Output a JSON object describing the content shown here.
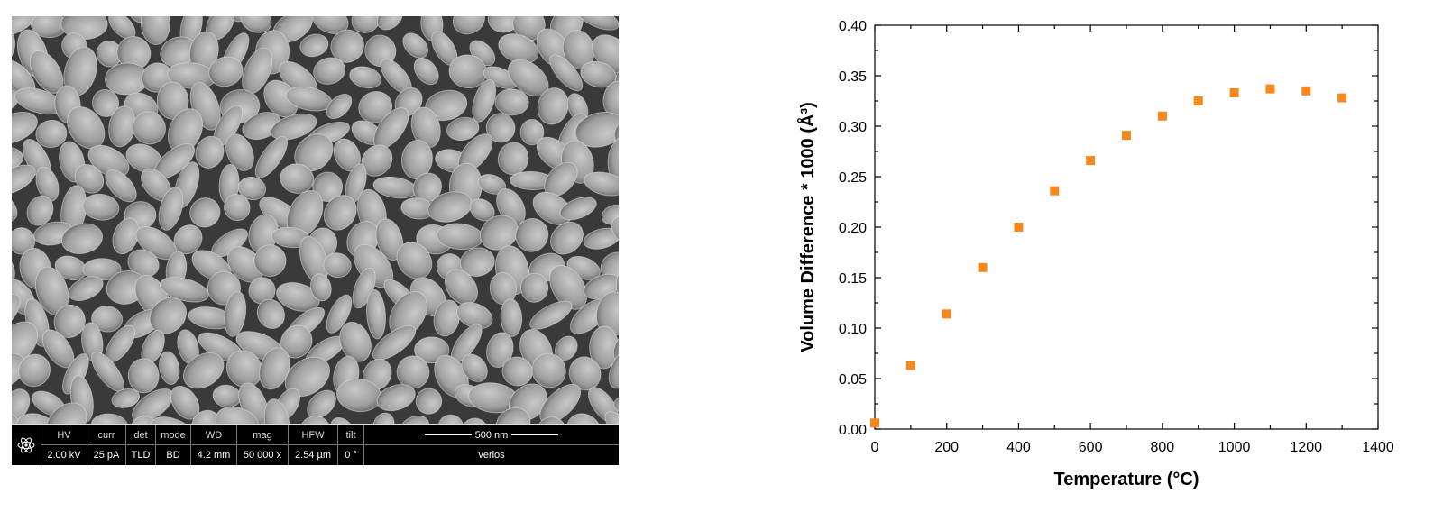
{
  "sem": {
    "databar": {
      "columns": [
        {
          "key": "hv",
          "label": "HV",
          "value": "2.00 kV"
        },
        {
          "key": "curr",
          "label": "curr",
          "value": "25 pA"
        },
        {
          "key": "det",
          "label": "det",
          "value": "TLD"
        },
        {
          "key": "mode",
          "label": "mode",
          "value": "BD"
        },
        {
          "key": "wd",
          "label": "WD",
          "value": "4.2 mm"
        },
        {
          "key": "mag",
          "label": "mag",
          "value": "50 000 x"
        },
        {
          "key": "hfw",
          "label": "HFW",
          "value": "2.54 µm"
        },
        {
          "key": "tilt",
          "label": "tilt",
          "value": "0 °"
        }
      ],
      "scale_bar_label": "500 nm",
      "instrument": "verios"
    }
  },
  "chart_data": {
    "type": "scatter",
    "title": "",
    "xlabel": "Temperature (°C)",
    "ylabel": "Volume Difference * 1000 (Å³)",
    "xlim": [
      0,
      1400
    ],
    "ylim": [
      0.0,
      0.4
    ],
    "xticks": [
      0,
      200,
      400,
      600,
      800,
      1000,
      1200,
      1400
    ],
    "yticks": [
      "0.00",
      "0.05",
      "0.10",
      "0.15",
      "0.20",
      "0.25",
      "0.30",
      "0.35",
      "0.40"
    ],
    "grid": false,
    "marker": "square",
    "color": "#f5891f",
    "x": [
      0,
      100,
      200,
      300,
      400,
      500,
      600,
      700,
      800,
      900,
      1000,
      1100,
      1200,
      1300
    ],
    "y": [
      0.006,
      0.063,
      0.114,
      0.16,
      0.2,
      0.236,
      0.266,
      0.291,
      0.31,
      0.325,
      0.333,
      0.337,
      0.335,
      0.328
    ]
  }
}
